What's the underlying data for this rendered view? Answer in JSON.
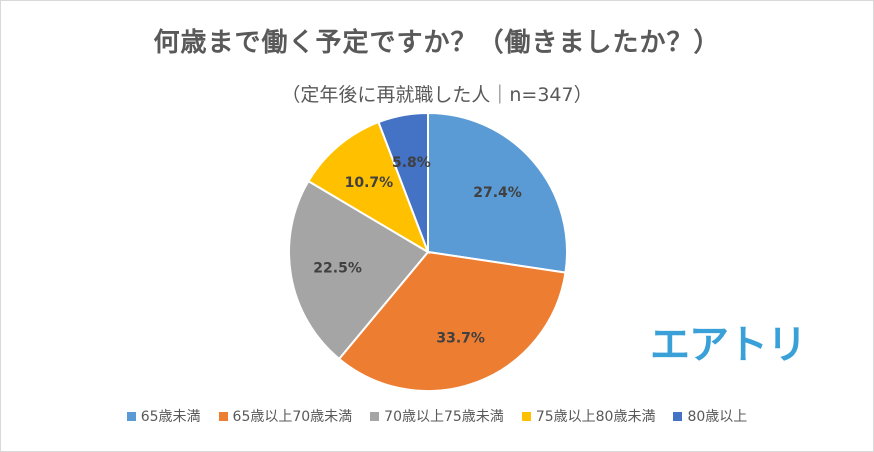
{
  "chart_data": {
    "type": "pie",
    "title": "何歳まで働く予定ですか？（働きましたか？）",
    "subtitle": "（定年後に再就職した人｜n=347）",
    "slices": [
      {
        "label": "65歳未満",
        "value": 27.4,
        "display": "27.4%",
        "color": "#5b9bd5"
      },
      {
        "label": "65歳以上70歳未満",
        "value": 33.7,
        "display": "33.7%",
        "color": "#ed7d31"
      },
      {
        "label": "70歳以上75歳未満",
        "value": 22.5,
        "display": "22.5%",
        "color": "#a5a5a5"
      },
      {
        "label": "75歳以上80歳未満",
        "value": 10.7,
        "display": "10.7%",
        "color": "#ffc000"
      },
      {
        "label": "80歳以上",
        "value": 5.8,
        "display": "5.8%",
        "color": "#4472c4"
      }
    ],
    "legend_position": "bottom"
  },
  "brand": {
    "logo_text": "エアトリ",
    "color": "#3aa0d8"
  }
}
